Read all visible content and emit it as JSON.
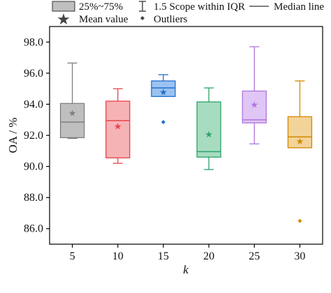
{
  "chart_data": {
    "type": "box",
    "xlabel": "k",
    "ylabel": "OA / %",
    "ylim": [
      85.0,
      99.0
    ],
    "yticks": [
      86.0,
      88.0,
      90.0,
      92.0,
      94.0,
      96.0,
      98.0
    ],
    "ytick_labels": [
      "86.0",
      "88.0",
      "90.0",
      "92.0",
      "94.0",
      "96.0",
      "98.0"
    ],
    "categories": [
      "5",
      "10",
      "15",
      "20",
      "25",
      "30"
    ],
    "legend": {
      "position": "top",
      "items": [
        {
          "key": "box",
          "label": "25%~75%"
        },
        {
          "key": "whisker",
          "label": "1.5 Scope within IQR"
        },
        {
          "key": "median",
          "label": "Median line"
        },
        {
          "key": "mean",
          "label": "Mean value"
        },
        {
          "key": "outlier",
          "label": "Outliers"
        }
      ]
    },
    "series": [
      {
        "category": "5",
        "q1": 91.85,
        "median": 92.85,
        "q3": 94.05,
        "whisker_low": 91.8,
        "whisker_high": 96.65,
        "mean": 93.45,
        "outliers": [],
        "color": "#7f7f7f",
        "fill": "#bfbfbf"
      },
      {
        "category": "10",
        "q1": 90.55,
        "median": 92.95,
        "q3": 94.2,
        "whisker_low": 90.2,
        "whisker_high": 95.0,
        "mean": 92.6,
        "outliers": [],
        "color": "#e8434b",
        "fill": "#f6b3b6"
      },
      {
        "category": "15",
        "q1": 94.5,
        "median": 95.05,
        "q3": 95.5,
        "whisker_low": 94.5,
        "whisker_high": 95.9,
        "mean": 94.8,
        "outliers": [
          92.85
        ],
        "color": "#1f6fd1",
        "fill": "#9cc3f0"
      },
      {
        "category": "20",
        "q1": 90.6,
        "median": 90.95,
        "q3": 94.15,
        "whisker_low": 89.8,
        "whisker_high": 95.05,
        "mean": 92.1,
        "outliers": [],
        "color": "#2aa36a",
        "fill": "#a8dcc0"
      },
      {
        "category": "25",
        "q1": 92.8,
        "median": 93.0,
        "q3": 94.85,
        "whisker_low": 91.45,
        "whisker_high": 97.7,
        "mean": 94.0,
        "outliers": [],
        "color": "#b074e0",
        "fill": "#dfc6f5"
      },
      {
        "category": "30",
        "q1": 91.2,
        "median": 91.9,
        "q3": 93.2,
        "whisker_low": 91.2,
        "whisker_high": 95.5,
        "mean": 91.65,
        "outliers": [
          86.5
        ],
        "color": "#d18a00",
        "fill": "#f2d39a"
      }
    ]
  }
}
